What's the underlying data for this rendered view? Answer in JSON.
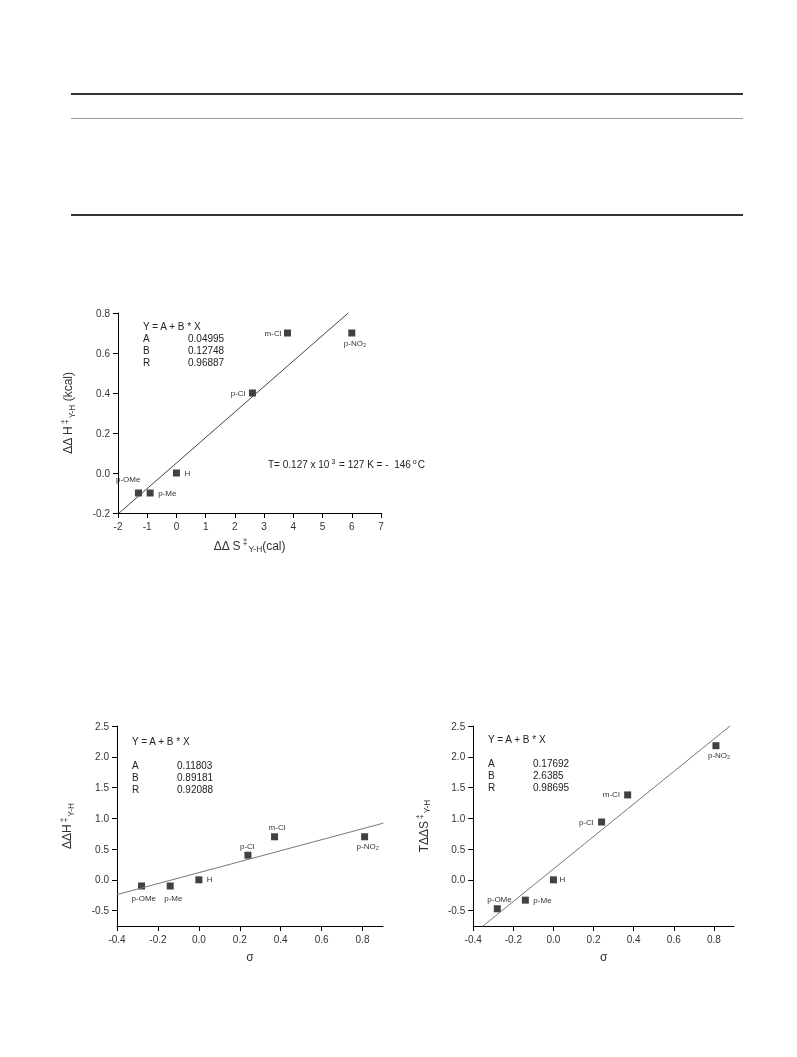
{
  "chart_data": [
    {
      "type": "scatter",
      "xlabel": "ΔΔ S$^{‡}$$_{Y-H}$(cal)",
      "ylabel": "ΔΔ H$^{‡}$$_{Y-H}$ (kcal)",
      "xlim": [
        -2,
        7
      ],
      "xticks": [
        -2,
        -1,
        0,
        1,
        2,
        3,
        4,
        5,
        6,
        7
      ],
      "ylim": [
        -0.2,
        0.8
      ],
      "yticks": [
        -0.2,
        {
          "value": 0,
          "label": "0.0"
        },
        0.2,
        0.4,
        0.6,
        0.8
      ],
      "grid": false,
      "series": [
        {
          "color": "#111111",
          "marker": "square",
          "x": [
            -1.3,
            -0.9,
            0,
            2.6,
            3.8,
            6.0
          ],
          "values": [
            -0.1,
            -0.1,
            0,
            0.4,
            0.7,
            0.7
          ]
        },
        {
          "type": "line",
          "color": "#444444",
          "marker": "none",
          "line_style": "solid",
          "x": [
            -1.96,
            5.88
          ],
          "values": [
            -0.2,
            0.8
          ]
        }
      ],
      "annotations": [
        "Y = A + B * X\nA\t0.04995\nB\t0.12748\nR\t0.96887",
        "T= 0.127 x 10$^{3}$ = 127 K = -  146$^{o}$C",
        {
          "text": "p-OMe",
          "x": -1.3,
          "y": -0.1
        },
        {
          "text": "p-Me",
          "x": -0.9,
          "y": -0.1
        },
        {
          "text": "H",
          "x": 0,
          "y": 0
        },
        {
          "text": "p-Cl",
          "x": 2.6,
          "y": 0.4
        },
        {
          "text": "m-Cl",
          "x": 3.8,
          "y": 0.7
        },
        {
          "text": "p-NO₂",
          "x": 6.0,
          "y": 0.7
        }
      ]
    },
    {
      "type": "scatter",
      "xlabel": "σ",
      "ylabel": "ΔΔH$^{‡}$$_{Y-H}$",
      "xlim": [
        -0.4,
        0.9
      ],
      "xticks": [
        -0.4,
        -0.2,
        {
          "value": 0,
          "label": "0.0"
        },
        0.2,
        0.4,
        0.6,
        0.8
      ],
      "ylim": [
        -0.75,
        2.5
      ],
      "yticks": [
        -0.5,
        {
          "value": 0,
          "label": "0.0"
        },
        0.5,
        {
          "value": 1,
          "label": "1.0"
        },
        1.5,
        {
          "value": 2,
          "label": "2.0"
        },
        2.5
      ],
      "grid": false,
      "series": [
        {
          "color": "#111111",
          "marker": "square",
          "x": [
            -0.28,
            -0.14,
            0,
            0.24,
            0.37,
            0.81
          ],
          "values": [
            -0.1,
            -0.1,
            0,
            0.4,
            0.7,
            0.7
          ]
        },
        {
          "type": "line",
          "color": "#777777",
          "marker": "none",
          "line_style": "solid",
          "x": [
            -0.4,
            0.9
          ],
          "values": [
            -0.24,
            0.92
          ]
        }
      ],
      "annotations": [
        "Y = A + B * X\n\nA\t0.11803\nB\t0.89181\nR\t0.92088",
        {
          "text": "p-OMe",
          "x": -0.28,
          "y": -0.1
        },
        {
          "text": "p-Me",
          "x": -0.14,
          "y": -0.1
        },
        {
          "text": "H",
          "x": 0,
          "y": 0
        },
        {
          "text": "p-Cl",
          "x": 0.24,
          "y": 0.4
        },
        {
          "text": "m-Cl",
          "x": 0.37,
          "y": 0.7
        },
        {
          "text": "p-NO₂",
          "x": 0.81,
          "y": 0.7
        }
      ]
    },
    {
      "type": "scatter",
      "xlabel": "σ",
      "ylabel": "TΔΔS$^{‡}$$_{Y-H}$",
      "xlim": [
        -0.4,
        0.9
      ],
      "xticks": [
        -0.4,
        -0.2,
        {
          "value": 0,
          "label": "0.0"
        },
        0.2,
        0.4,
        0.6,
        0.8
      ],
      "ylim": [
        -0.75,
        2.5
      ],
      "yticks": [
        -0.5,
        {
          "value": 0,
          "label": "0.0"
        },
        0.5,
        {
          "value": 1,
          "label": "1.0"
        },
        1.5,
        {
          "value": 2,
          "label": "2.0"
        },
        2.5
      ],
      "grid": false,
      "series": [
        {
          "color": "#111111",
          "marker": "square",
          "x": [
            -0.28,
            -0.14,
            0,
            0.24,
            0.37,
            0.81
          ],
          "values": [
            -0.47,
            -0.33,
            0,
            0.94,
            1.38,
            2.18
          ]
        },
        {
          "type": "line",
          "color": "#777777",
          "marker": "none",
          "line_style": "solid",
          "x": [
            -0.351,
            0.88
          ],
          "values": [
            -0.75,
            2.5
          ]
        }
      ],
      "annotations": [
        "Y = A + B * X\n\nA\t0.17692\nB\t2.6385\nR\t0.98695",
        {
          "text": "p-OMe",
          "x": -0.28,
          "y": -0.47
        },
        {
          "text": "p-Me",
          "x": -0.14,
          "y": -0.33
        },
        {
          "text": "H",
          "x": 0,
          "y": 0
        },
        {
          "text": "p-Cl",
          "x": 0.24,
          "y": 0.94
        },
        {
          "text": "m-Cl",
          "x": 0.37,
          "y": 1.38
        },
        {
          "text": "p-NO₂",
          "x": 0.81,
          "y": 2.18
        }
      ]
    }
  ]
}
